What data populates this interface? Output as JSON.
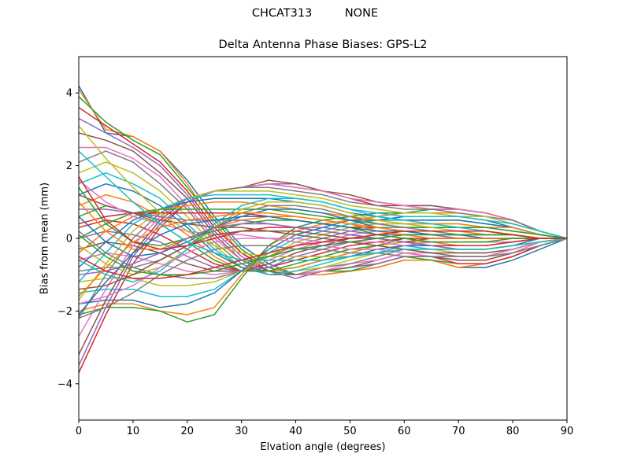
{
  "figure": {
    "suptitle": "CHCAT313         NONE"
  },
  "chart_data": {
    "type": "line",
    "title": "Delta Antenna Phase Biases: GPS-L2",
    "xlabel": "Elvation angle (degrees)",
    "ylabel": "Bias from mean (mm)",
    "xlim": [
      0,
      90
    ],
    "ylim": [
      -5,
      5
    ],
    "xticks": [
      0,
      10,
      20,
      30,
      40,
      50,
      60,
      70,
      80,
      90
    ],
    "yticks": [
      -4,
      -2,
      0,
      2,
      4
    ],
    "ytick_labels": [
      "−4",
      "−2",
      "0",
      "2",
      "4"
    ],
    "grid": false,
    "legend": "none",
    "x": [
      0,
      5,
      10,
      15,
      20,
      25,
      30,
      35,
      40,
      45,
      50,
      55,
      60,
      65,
      70,
      75,
      80,
      85,
      90
    ],
    "colors": [
      "#1f77b4",
      "#ff7f0e",
      "#2ca02c",
      "#d62728",
      "#9467bd",
      "#8c564b",
      "#e377c2",
      "#7f7f7f",
      "#bcbd22",
      "#17becf"
    ],
    "series": [
      {
        "values": [
          4.2,
          2.9,
          2.8,
          2.4,
          1.6,
          0.6,
          -0.2,
          -0.7,
          -1.0,
          -1.0,
          -0.9,
          -0.8,
          -0.6,
          -0.6,
          -0.8,
          -0.8,
          -0.6,
          -0.3,
          0
        ]
      },
      {
        "values": [
          4.1,
          3.0,
          2.8,
          2.4,
          1.5,
          0.4,
          -0.4,
          -0.8,
          -1.0,
          -1.0,
          -0.9,
          -0.8,
          -0.6,
          -0.6,
          -0.8,
          -0.7,
          -0.5,
          -0.2,
          0
        ]
      },
      {
        "values": [
          3.9,
          3.2,
          2.7,
          2.3,
          1.4,
          0.5,
          -0.3,
          -0.8,
          -1.0,
          -0.9,
          -0.9,
          -0.7,
          -0.5,
          -0.6,
          -0.7,
          -0.7,
          -0.5,
          -0.2,
          0
        ]
      },
      {
        "values": [
          3.6,
          3.1,
          2.6,
          2.1,
          1.3,
          0.3,
          -0.4,
          -0.9,
          -1.0,
          -0.9,
          -0.8,
          -0.7,
          -0.5,
          -0.5,
          -0.7,
          -0.7,
          -0.5,
          -0.2,
          0
        ]
      },
      {
        "values": [
          3.3,
          2.9,
          2.5,
          2.0,
          1.2,
          0.2,
          -0.5,
          -0.9,
          -1.1,
          -0.9,
          -0.8,
          -0.7,
          -0.5,
          -0.5,
          -0.6,
          -0.6,
          -0.4,
          -0.2,
          0
        ]
      },
      {
        "values": [
          2.9,
          2.7,
          2.4,
          1.8,
          1.1,
          0.1,
          -0.6,
          -0.9,
          -1.0,
          -0.9,
          -0.8,
          -0.6,
          -0.4,
          -0.5,
          -0.6,
          -0.6,
          -0.4,
          -0.2,
          0
        ]
      },
      {
        "values": [
          2.5,
          2.5,
          2.2,
          1.7,
          0.9,
          0.0,
          -0.6,
          -1.0,
          -1.0,
          -0.9,
          -0.7,
          -0.6,
          -0.4,
          -0.4,
          -0.5,
          -0.5,
          -0.4,
          -0.1,
          0
        ]
      },
      {
        "values": [
          2.1,
          2.4,
          2.1,
          1.5,
          0.8,
          -0.1,
          -0.7,
          -1.0,
          -1.0,
          -0.8,
          -0.7,
          -0.5,
          -0.3,
          -0.4,
          -0.5,
          -0.5,
          -0.3,
          -0.1,
          0
        ]
      },
      {
        "values": [
          1.8,
          2.1,
          1.8,
          1.3,
          0.6,
          -0.2,
          -0.8,
          -1.0,
          -0.9,
          -0.8,
          -0.6,
          -0.4,
          -0.3,
          -0.3,
          -0.4,
          -0.4,
          -0.3,
          -0.1,
          0
        ]
      },
      {
        "values": [
          1.5,
          1.8,
          1.5,
          1.1,
          0.4,
          -0.3,
          -0.8,
          -1.0,
          -0.9,
          -0.7,
          -0.5,
          -0.4,
          -0.2,
          -0.3,
          -0.3,
          -0.3,
          -0.2,
          -0.1,
          0
        ]
      },
      {
        "values": [
          1.2,
          1.5,
          1.3,
          0.9,
          0.3,
          -0.4,
          -0.8,
          -0.9,
          -0.8,
          -0.6,
          -0.5,
          -0.3,
          -0.2,
          -0.2,
          -0.3,
          -0.3,
          -0.2,
          0.0,
          0
        ]
      },
      {
        "values": [
          0.9,
          1.2,
          1.0,
          0.6,
          0.1,
          -0.5,
          -0.9,
          -0.9,
          -0.8,
          -0.6,
          -0.4,
          -0.2,
          -0.1,
          -0.1,
          -0.2,
          -0.2,
          -0.1,
          0.0,
          0
        ]
      },
      {
        "values": [
          0.6,
          0.9,
          0.7,
          0.4,
          -0.1,
          -0.6,
          -0.9,
          -0.9,
          -0.7,
          -0.5,
          -0.3,
          -0.2,
          0.0,
          -0.1,
          -0.1,
          -0.1,
          -0.1,
          0.0,
          0
        ]
      },
      {
        "values": [
          0.3,
          0.5,
          0.4,
          0.1,
          -0.3,
          -0.7,
          -0.9,
          -0.8,
          -0.6,
          -0.4,
          -0.2,
          -0.1,
          0.0,
          0.0,
          0.0,
          0.0,
          0.0,
          0.0,
          0
        ]
      },
      {
        "values": [
          0.0,
          0.2,
          0.1,
          -0.1,
          -0.5,
          -0.8,
          -0.9,
          -0.8,
          -0.5,
          -0.3,
          -0.1,
          0.0,
          0.1,
          0.1,
          0.0,
          0.0,
          0.0,
          0.0,
          0
        ]
      },
      {
        "values": [
          -0.3,
          -0.1,
          -0.2,
          -0.4,
          -0.7,
          -0.9,
          -0.9,
          -0.7,
          -0.4,
          -0.2,
          0.0,
          0.1,
          0.2,
          0.1,
          0.1,
          0.1,
          0.1,
          0.0,
          0
        ]
      },
      {
        "values": [
          -0.6,
          -0.4,
          -0.5,
          -0.7,
          -0.9,
          -1.0,
          -0.9,
          -0.6,
          -0.3,
          -0.1,
          0.1,
          0.2,
          0.2,
          0.2,
          0.2,
          0.2,
          0.1,
          0.0,
          0
        ]
      },
      {
        "values": [
          -0.9,
          -0.8,
          -0.8,
          -1.0,
          -1.1,
          -1.1,
          -0.9,
          -0.5,
          -0.2,
          0.0,
          0.2,
          0.3,
          0.3,
          0.3,
          0.3,
          0.3,
          0.2,
          0.1,
          0
        ]
      },
      {
        "values": [
          -1.2,
          -1.1,
          -1.1,
          -1.3,
          -1.3,
          -1.2,
          -0.9,
          -0.5,
          -0.1,
          0.1,
          0.3,
          0.4,
          0.4,
          0.4,
          0.4,
          0.3,
          0.2,
          0.1,
          0
        ]
      },
      {
        "values": [
          -1.5,
          -1.4,
          -1.4,
          -1.6,
          -1.6,
          -1.4,
          -0.9,
          -0.4,
          0.0,
          0.2,
          0.4,
          0.5,
          0.5,
          0.5,
          0.5,
          0.4,
          0.3,
          0.1,
          0
        ]
      },
      {
        "values": [
          -1.8,
          -1.7,
          -1.7,
          -1.9,
          -1.8,
          -1.5,
          -0.9,
          -0.3,
          0.1,
          0.3,
          0.5,
          0.5,
          0.6,
          0.6,
          0.6,
          0.5,
          0.3,
          0.1,
          0
        ]
      },
      {
        "values": [
          -2.0,
          -1.8,
          -1.8,
          -2.0,
          -2.1,
          -1.9,
          -1.0,
          -0.2,
          0.2,
          0.4,
          0.5,
          0.6,
          0.7,
          0.7,
          0.7,
          0.6,
          0.4,
          0.2,
          0
        ]
      },
      {
        "values": [
          -2.1,
          -1.9,
          -1.9,
          -2.0,
          -2.3,
          -2.1,
          -1.1,
          -0.2,
          0.3,
          0.5,
          0.6,
          0.7,
          0.7,
          0.8,
          0.8,
          0.7,
          0.5,
          0.2,
          0
        ]
      },
      {
        "values": [
          -3.7,
          -2.1,
          -0.7,
          0.3,
          1.0,
          1.3,
          1.4,
          1.5,
          1.4,
          1.3,
          1.1,
          0.9,
          0.9,
          0.8,
          0.8,
          0.7,
          0.5,
          0.2,
          0
        ]
      },
      {
        "values": [
          -3.5,
          -1.9,
          -0.5,
          0.4,
          1.0,
          1.3,
          1.4,
          1.5,
          1.5,
          1.3,
          1.1,
          1.0,
          0.9,
          0.9,
          0.8,
          0.7,
          0.5,
          0.2,
          0
        ]
      },
      {
        "values": [
          -3.2,
          -1.7,
          -0.4,
          0.5,
          1.1,
          1.3,
          1.4,
          1.6,
          1.5,
          1.3,
          1.2,
          1.0,
          0.9,
          0.9,
          0.8,
          0.7,
          0.5,
          0.2,
          0
        ]
      },
      {
        "values": [
          -2.7,
          -1.4,
          -0.2,
          0.6,
          1.1,
          1.3,
          1.4,
          1.5,
          1.4,
          1.3,
          1.1,
          1.0,
          0.9,
          0.8,
          0.8,
          0.7,
          0.5,
          0.2,
          0
        ]
      },
      {
        "values": [
          -2.2,
          -1.0,
          0.0,
          0.7,
          1.1,
          1.3,
          1.4,
          1.4,
          1.3,
          1.2,
          1.0,
          0.9,
          0.8,
          0.8,
          0.7,
          0.6,
          0.5,
          0.2,
          0
        ]
      },
      {
        "values": [
          -1.7,
          -0.7,
          0.2,
          0.8,
          1.1,
          1.3,
          1.3,
          1.3,
          1.2,
          1.1,
          0.9,
          0.8,
          0.7,
          0.7,
          0.6,
          0.6,
          0.4,
          0.2,
          0
        ]
      },
      {
        "values": [
          -1.2,
          -0.4,
          0.4,
          0.8,
          1.1,
          1.2,
          1.2,
          1.2,
          1.1,
          1.0,
          0.8,
          0.7,
          0.6,
          0.6,
          0.6,
          0.5,
          0.4,
          0.2,
          0
        ]
      },
      {
        "values": [
          -0.8,
          -0.1,
          0.5,
          0.8,
          1.0,
          1.1,
          1.1,
          1.1,
          1.0,
          0.9,
          0.7,
          0.6,
          0.5,
          0.5,
          0.5,
          0.4,
          0.3,
          0.1,
          0
        ]
      },
      {
        "values": [
          -0.4,
          0.2,
          0.6,
          0.8,
          0.9,
          1.0,
          1.0,
          0.9,
          0.8,
          0.7,
          0.6,
          0.5,
          0.4,
          0.4,
          0.4,
          0.3,
          0.3,
          0.1,
          0
        ]
      },
      {
        "values": [
          0.0,
          0.4,
          0.7,
          0.8,
          0.8,
          0.8,
          0.8,
          0.8,
          0.7,
          0.6,
          0.5,
          0.4,
          0.3,
          0.3,
          0.3,
          0.3,
          0.2,
          0.1,
          0
        ]
      },
      {
        "values": [
          0.4,
          0.6,
          0.7,
          0.7,
          0.7,
          0.7,
          0.7,
          0.6,
          0.5,
          0.4,
          0.3,
          0.3,
          0.2,
          0.2,
          0.2,
          0.2,
          0.1,
          0.0,
          0
        ]
      },
      {
        "values": [
          0.8,
          0.8,
          0.7,
          0.6,
          0.5,
          0.5,
          0.5,
          0.4,
          0.3,
          0.3,
          0.2,
          0.1,
          0.1,
          0.1,
          0.1,
          0.1,
          0.1,
          0.0,
          0
        ]
      },
      {
        "values": [
          1.2,
          0.9,
          0.7,
          0.5,
          0.4,
          0.3,
          0.3,
          0.2,
          0.2,
          0.1,
          0.0,
          0.0,
          -0.1,
          0.0,
          0.0,
          0.0,
          0.0,
          0.0,
          0
        ]
      },
      {
        "values": [
          1.6,
          1.0,
          0.6,
          0.4,
          0.2,
          0.1,
          0.1,
          0.0,
          0.0,
          -0.1,
          -0.1,
          -0.1,
          -0.2,
          -0.1,
          -0.1,
          -0.1,
          -0.1,
          0.0,
          0
        ]
      },
      {
        "values": [
          0.2,
          -0.4,
          -0.8,
          -0.6,
          -0.2,
          0.3,
          0.7,
          0.9,
          0.9,
          0.8,
          0.6,
          0.4,
          0.3,
          0.2,
          0.1,
          0.1,
          0.1,
          0.0,
          0
        ]
      },
      {
        "values": [
          -0.2,
          -0.7,
          -1.0,
          -0.8,
          -0.3,
          0.3,
          0.8,
          1.0,
          1.0,
          0.9,
          0.7,
          0.5,
          0.4,
          0.3,
          0.2,
          0.1,
          0.1,
          0.0,
          0
        ]
      },
      {
        "values": [
          -0.6,
          -1.0,
          -1.2,
          -0.9,
          -0.3,
          0.4,
          0.9,
          1.1,
          1.1,
          1.0,
          0.8,
          0.6,
          0.5,
          0.4,
          0.3,
          0.2,
          0.1,
          0.0,
          0
        ]
      },
      {
        "values": [
          0.6,
          -0.1,
          -0.5,
          -0.4,
          -0.1,
          0.3,
          0.6,
          0.8,
          0.8,
          0.7,
          0.5,
          0.3,
          0.2,
          0.1,
          0.1,
          0.0,
          0.0,
          0.0,
          0
        ]
      },
      {
        "values": [
          1.0,
          0.2,
          -0.3,
          -0.3,
          0.0,
          0.3,
          0.5,
          0.6,
          0.6,
          0.5,
          0.4,
          0.2,
          0.1,
          0.0,
          0.0,
          0.0,
          0.0,
          0.0,
          0
        ]
      },
      {
        "values": [
          1.4,
          0.4,
          -0.1,
          -0.2,
          0.0,
          0.2,
          0.4,
          0.5,
          0.5,
          0.4,
          0.3,
          0.1,
          0.0,
          -0.1,
          -0.1,
          -0.1,
          0.0,
          0.0,
          0
        ]
      },
      {
        "values": [
          1.7,
          0.5,
          -0.1,
          -0.3,
          -0.2,
          0.0,
          0.2,
          0.3,
          0.3,
          0.2,
          0.1,
          0.0,
          -0.1,
          -0.2,
          -0.2,
          -0.2,
          -0.1,
          0.0,
          0
        ]
      },
      {
        "values": [
          -1.0,
          -0.9,
          -0.7,
          -0.4,
          0.0,
          0.3,
          0.4,
          0.4,
          0.3,
          0.2,
          0.1,
          0.0,
          -0.1,
          -0.2,
          -0.3,
          -0.3,
          -0.2,
          -0.1,
          0
        ]
      },
      {
        "values": [
          -1.4,
          -1.3,
          -1.0,
          -0.6,
          -0.2,
          0.1,
          0.2,
          0.2,
          0.1,
          0.0,
          -0.1,
          -0.2,
          -0.3,
          -0.4,
          -0.4,
          -0.4,
          -0.3,
          -0.1,
          0
        ]
      },
      {
        "values": [
          -1.8,
          -1.6,
          -1.3,
          -0.8,
          -0.4,
          -0.1,
          0.0,
          0.0,
          -0.1,
          -0.2,
          -0.3,
          -0.3,
          -0.4,
          -0.5,
          -0.5,
          -0.5,
          -0.3,
          -0.1,
          0
        ]
      },
      {
        "values": [
          -2.2,
          -1.9,
          -1.5,
          -1.0,
          -0.6,
          -0.3,
          -0.2,
          -0.2,
          -0.3,
          -0.3,
          -0.4,
          -0.4,
          -0.5,
          -0.5,
          -0.5,
          -0.5,
          -0.4,
          -0.2,
          0
        ]
      },
      {
        "values": [
          3.1,
          2.2,
          1.4,
          0.7,
          0.2,
          -0.2,
          -0.4,
          -0.5,
          -0.5,
          -0.5,
          -0.5,
          -0.4,
          -0.3,
          -0.3,
          -0.3,
          -0.3,
          -0.2,
          -0.1,
          0
        ]
      },
      {
        "values": [
          2.4,
          1.7,
          1.0,
          0.4,
          -0.1,
          -0.4,
          -0.6,
          -0.6,
          -0.6,
          -0.6,
          -0.5,
          -0.4,
          -0.3,
          -0.3,
          -0.3,
          -0.3,
          -0.2,
          -0.1,
          0
        ]
      },
      {
        "values": [
          -2.1,
          -1.2,
          -0.4,
          0.1,
          0.4,
          0.5,
          0.6,
          0.6,
          0.5,
          0.4,
          0.3,
          0.2,
          0.2,
          0.1,
          0.1,
          0.1,
          0.1,
          0.0,
          0
        ]
      },
      {
        "values": [
          -1.6,
          -0.8,
          -0.1,
          0.3,
          0.5,
          0.6,
          0.7,
          0.7,
          0.6,
          0.5,
          0.4,
          0.3,
          0.2,
          0.2,
          0.2,
          0.1,
          0.1,
          0.0,
          0
        ]
      },
      {
        "values": [
          0.1,
          -0.5,
          -0.9,
          -1.0,
          -1.0,
          -0.9,
          -0.7,
          -0.5,
          -0.3,
          -0.2,
          -0.1,
          0.0,
          0.1,
          0.1,
          0.1,
          0.1,
          0.1,
          0.0,
          0
        ]
      },
      {
        "values": [
          -0.5,
          -0.9,
          -1.1,
          -1.1,
          -1.0,
          -0.8,
          -0.6,
          -0.4,
          -0.2,
          -0.1,
          0.0,
          0.1,
          0.2,
          0.2,
          0.2,
          0.2,
          0.1,
          0.0,
          0
        ]
      }
    ]
  }
}
